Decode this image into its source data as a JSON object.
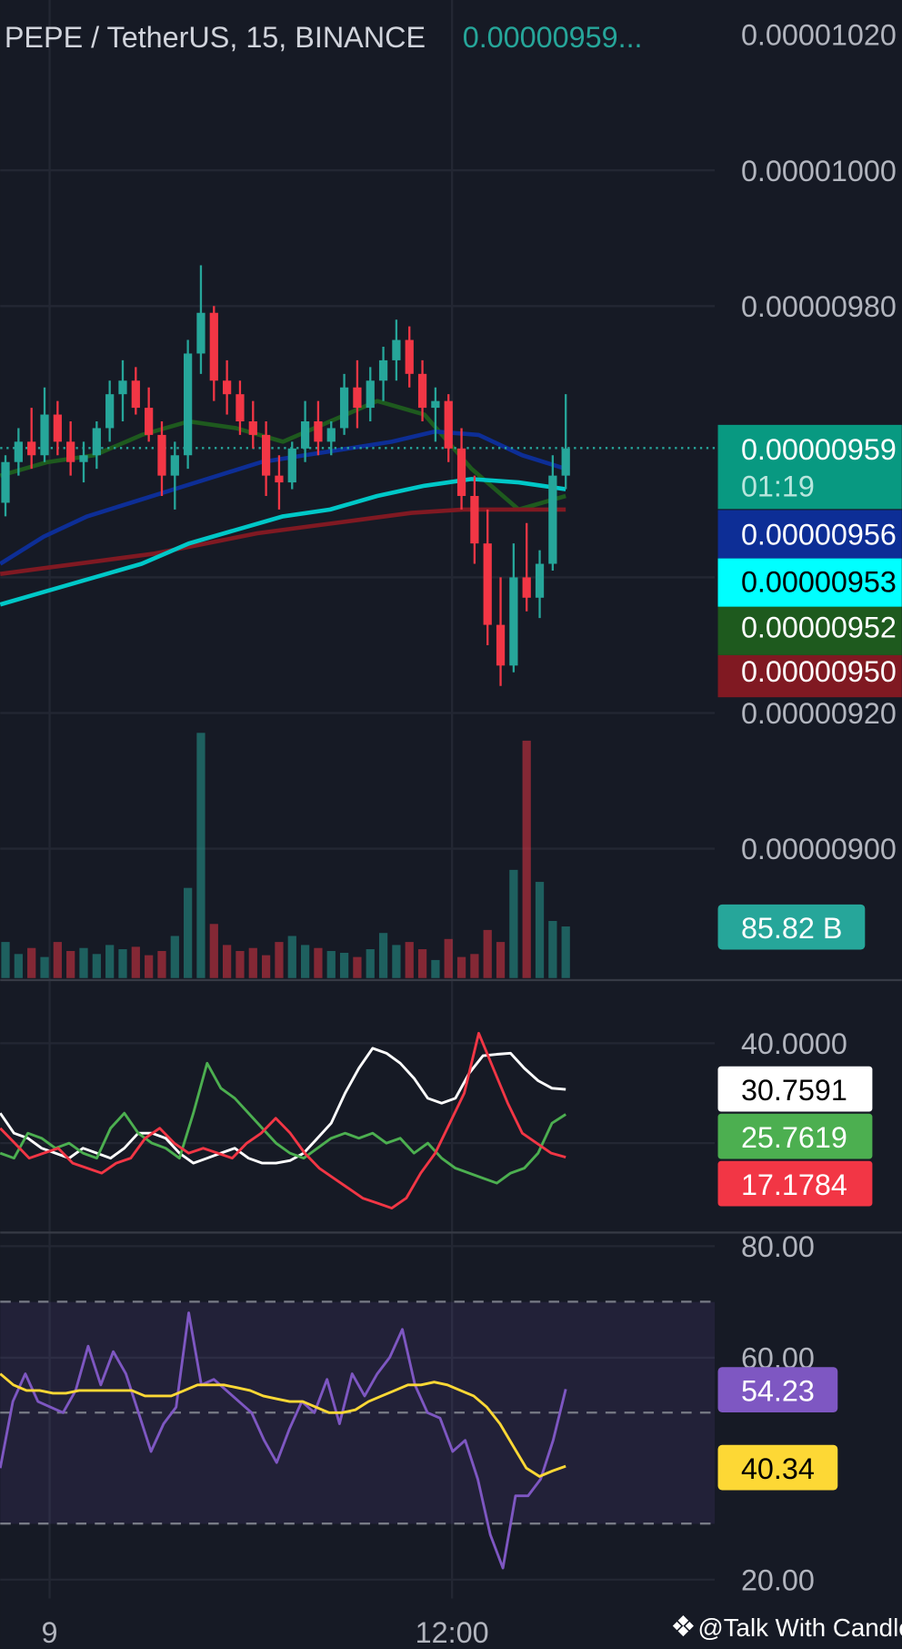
{
  "header": {
    "symbol": "PEPE / TetherUS, 15, BINANCE",
    "last_price": "0.00000959..."
  },
  "price_axis": {
    "ticks": [
      "0.00001020",
      "0.00001000",
      "0.00000980",
      "0.00000920",
      "0.00000900"
    ]
  },
  "price_labels": [
    {
      "text": "0.00000959",
      "sub": "01:19",
      "bg": "#089981",
      "fg": "#ffffff"
    },
    {
      "text": "0.00000956",
      "bg": "#0d2e96",
      "fg": "#ffffff"
    },
    {
      "text": "0.00000953",
      "bg": "#00ffff",
      "fg": "#000000"
    },
    {
      "text": "0.00000952",
      "bg": "#1e5a1e",
      "fg": "#ffffff"
    },
    {
      "text": "0.00000950",
      "bg": "#801922",
      "fg": "#ffffff"
    }
  ],
  "volume_label": "85.82 B",
  "dmi": {
    "axis_tick": "40.0000",
    "labels": [
      {
        "text": "30.7591",
        "bg": "#ffffff",
        "fg": "#000000"
      },
      {
        "text": "25.7619",
        "bg": "#4caf50",
        "fg": "#ffffff"
      },
      {
        "text": "17.1784",
        "bg": "#f23645",
        "fg": "#ffffff"
      }
    ]
  },
  "rsi": {
    "ticks": [
      "80.00",
      "60.00",
      "20.00"
    ],
    "labels": [
      {
        "text": "54.23",
        "bg": "#7e57c2",
        "fg": "#ffffff"
      },
      {
        "text": "40.34",
        "bg": "#fdd835",
        "fg": "#000000"
      }
    ]
  },
  "time_axis": [
    "9",
    "12:00"
  ],
  "watermark": "@Talk With Candle",
  "colors": {
    "up": "#26a69a",
    "down": "#f23645",
    "bg": "#161a25",
    "grid": "#2a2e39"
  },
  "chart_data": {
    "type": "candlestick",
    "symbol": "PEPE / TetherUS",
    "interval": "15",
    "exchange": "BINANCE",
    "ylim": [
      8.95e-06,
      1.025e-05
    ],
    "candles_ohlc": [
      [
        9.51e-06,
        9.58e-06,
        9.49e-06,
        9.57e-06
      ],
      [
        9.57e-06,
        9.62e-06,
        9.55e-06,
        9.6e-06
      ],
      [
        9.6e-06,
        9.65e-06,
        9.56e-06,
        9.58e-06
      ],
      [
        9.58e-06,
        9.68e-06,
        9.57e-06,
        9.64e-06
      ],
      [
        9.64e-06,
        9.66e-06,
        9.58e-06,
        9.6e-06
      ],
      [
        9.6e-06,
        9.63e-06,
        9.55e-06,
        9.57e-06
      ],
      [
        9.57e-06,
        9.6e-06,
        9.54e-06,
        9.58e-06
      ],
      [
        9.58e-06,
        9.63e-06,
        9.56e-06,
        9.62e-06
      ],
      [
        9.62e-06,
        9.69e-06,
        9.6e-06,
        9.67e-06
      ],
      [
        9.67e-06,
        9.72e-06,
        9.63e-06,
        9.69e-06
      ],
      [
        9.69e-06,
        9.71e-06,
        9.64e-06,
        9.65e-06
      ],
      [
        9.65e-06,
        9.68e-06,
        9.6e-06,
        9.61e-06
      ],
      [
        9.61e-06,
        9.63e-06,
        9.52e-06,
        9.55e-06
      ],
      [
        9.55e-06,
        9.6e-06,
        9.5e-06,
        9.58e-06
      ],
      [
        9.58e-06,
        9.75e-06,
        9.56e-06,
        9.73e-06
      ],
      [
        9.73e-06,
        9.86e-06,
        9.7e-06,
        9.79e-06
      ],
      [
        9.79e-06,
        9.8e-06,
        9.66e-06,
        9.69e-06
      ],
      [
        9.69e-06,
        9.72e-06,
        9.64e-06,
        9.67e-06
      ],
      [
        9.67e-06,
        9.69e-06,
        9.61e-06,
        9.63e-06
      ],
      [
        9.63e-06,
        9.66e-06,
        9.59e-06,
        9.61e-06
      ],
      [
        9.61e-06,
        9.63e-06,
        9.52e-06,
        9.55e-06
      ],
      [
        9.55e-06,
        9.58e-06,
        9.5e-06,
        9.54e-06
      ],
      [
        9.54e-06,
        9.6e-06,
        9.53e-06,
        9.59e-06
      ],
      [
        9.59e-06,
        9.66e-06,
        9.57e-06,
        9.63e-06
      ],
      [
        9.63e-06,
        9.66e-06,
        9.58e-06,
        9.6e-06
      ],
      [
        9.6e-06,
        9.63e-06,
        9.58e-06,
        9.62e-06
      ],
      [
        9.62e-06,
        9.7e-06,
        9.61e-06,
        9.68e-06
      ],
      [
        9.68e-06,
        9.72e-06,
        9.62e-06,
        9.65e-06
      ],
      [
        9.65e-06,
        9.71e-06,
        9.63e-06,
        9.69e-06
      ],
      [
        9.69e-06,
        9.74e-06,
        9.66e-06,
        9.72e-06
      ],
      [
        9.72e-06,
        9.78e-06,
        9.69e-06,
        9.75e-06
      ],
      [
        9.75e-06,
        9.77e-06,
        9.68e-06,
        9.7e-06
      ],
      [
        9.7e-06,
        9.72e-06,
        9.63e-06,
        9.65e-06
      ],
      [
        9.65e-06,
        9.68e-06,
        9.6e-06,
        9.66e-06
      ],
      [
        9.66e-06,
        9.67e-06,
        9.57e-06,
        9.59e-06
      ],
      [
        9.59e-06,
        9.62e-06,
        9.5e-06,
        9.52e-06
      ],
      [
        9.52e-06,
        9.55e-06,
        9.42e-06,
        9.45e-06
      ],
      [
        9.45e-06,
        9.5e-06,
        9.3e-06,
        9.33e-06
      ],
      [
        9.33e-06,
        9.4e-06,
        9.24e-06,
        9.27e-06
      ],
      [
        9.27e-06,
        9.45e-06,
        9.26e-06,
        9.4e-06
      ],
      [
        9.4e-06,
        9.48e-06,
        9.35e-06,
        9.37e-06
      ],
      [
        9.37e-06,
        9.44e-06,
        9.34e-06,
        9.42e-06
      ],
      [
        9.42e-06,
        9.58e-06,
        9.41e-06,
        9.55e-06
      ],
      [
        9.55e-06,
        9.67e-06,
        9.53e-06,
        9.59e-06
      ]
    ],
    "volume_B": [
      60,
      40,
      50,
      35,
      60,
      45,
      50,
      40,
      55,
      48,
      52,
      38,
      45,
      70,
      150,
      408,
      90,
      55,
      45,
      50,
      38,
      60,
      70,
      55,
      50,
      45,
      42,
      35,
      48,
      75,
      55,
      60,
      48,
      30,
      65,
      35,
      40,
      80,
      60,
      180,
      395,
      160,
      95,
      85.82
    ],
    "moving_averages": [
      {
        "color": "#1e5a1e",
        "values": [
          9.55e-06,
          9.57e-06,
          9.58e-06,
          9.61e-06,
          9.63e-06,
          9.62e-06,
          9.6e-06,
          9.63e-06,
          9.66e-06,
          9.64e-06,
          9.56e-06,
          9.5e-06,
          9.52e-06
        ]
      },
      {
        "color": "#0d2e96",
        "values": [
          9.42e-06,
          9.46e-06,
          9.49e-06,
          9.51e-06,
          9.53e-06,
          9.55e-06,
          9.57e-06,
          9.58e-06,
          9.59e-06,
          9.6e-06,
          9.615e-06,
          9.61e-06,
          9.58e-06,
          9.56e-06
        ]
      },
      {
        "color": "#801922",
        "values": [
          9.405e-06,
          9.415e-06,
          9.425e-06,
          9.435e-06,
          9.45e-06,
          9.465e-06,
          9.475e-06,
          9.485e-06,
          9.495e-06,
          9.5e-06,
          9.5e-06,
          9.5e-06
        ]
      },
      {
        "color": "#00c8c8",
        "values": [
          9.36e-06,
          9.38e-06,
          9.4e-06,
          9.42e-06,
          9.45e-06,
          9.47e-06,
          9.49e-06,
          9.5e-06,
          9.52e-06,
          9.535e-06,
          9.545e-06,
          9.54e-06,
          9.53e-06
        ]
      }
    ],
    "dmi_series": [
      {
        "color": "#ffffff",
        "values": [
          26,
          22,
          21,
          19,
          18,
          17,
          19,
          18,
          17,
          19,
          22,
          22,
          21,
          18,
          16,
          17,
          18,
          19,
          17,
          16,
          16,
          16.5,
          18,
          21,
          24,
          30,
          35,
          39,
          38,
          36,
          33,
          29,
          28,
          29,
          34,
          37.5,
          37.8,
          38,
          35,
          32.5,
          31,
          30.7591
        ]
      },
      {
        "color": "#4caf50",
        "values": [
          18,
          17,
          22,
          21,
          19,
          20,
          18,
          17,
          23,
          26,
          22,
          20,
          19,
          17,
          26,
          36,
          31,
          29,
          26,
          23,
          20,
          18,
          17,
          19,
          21,
          22,
          21,
          22,
          20,
          21,
          18,
          20,
          17,
          15,
          14,
          13,
          12,
          14,
          15,
          18,
          24,
          25.7619
        ]
      },
      {
        "color": "#f23645",
        "values": [
          23,
          20,
          17,
          18,
          19,
          16,
          15,
          14,
          16,
          17,
          21,
          23,
          20,
          18,
          19,
          18,
          17,
          20,
          22,
          25,
          22,
          18,
          15,
          13,
          11,
          9,
          8,
          7,
          9,
          14,
          18,
          24,
          30,
          42,
          35,
          28,
          22,
          20,
          18,
          17.1784
        ]
      }
    ],
    "rsi_series": [
      {
        "color": "#7e57c2",
        "values": [
          40,
          52,
          57,
          52,
          51,
          50,
          54,
          62,
          55,
          61,
          57,
          50,
          43,
          48,
          51,
          68,
          55,
          56,
          54,
          52,
          50,
          45,
          41,
          47,
          52,
          50,
          56,
          48,
          57,
          53,
          57,
          60,
          65,
          55,
          50,
          49,
          43,
          45,
          38,
          28,
          22,
          35,
          35,
          38,
          45,
          54.23
        ]
      },
      {
        "color": "#fdd835",
        "values": [
          57,
          55,
          54,
          54,
          53.5,
          53.5,
          54,
          54,
          54,
          54,
          54,
          53,
          53,
          53,
          54,
          55,
          55,
          55,
          54.5,
          54,
          53,
          52.5,
          52,
          52,
          51,
          50,
          50,
          50.5,
          52,
          53,
          54,
          55,
          55,
          55.5,
          55,
          54,
          53,
          51,
          48,
          44,
          40,
          38.5,
          39.5,
          40.34
        ]
      }
    ],
    "rsi_bands": [
      70,
      50,
      30
    ]
  }
}
